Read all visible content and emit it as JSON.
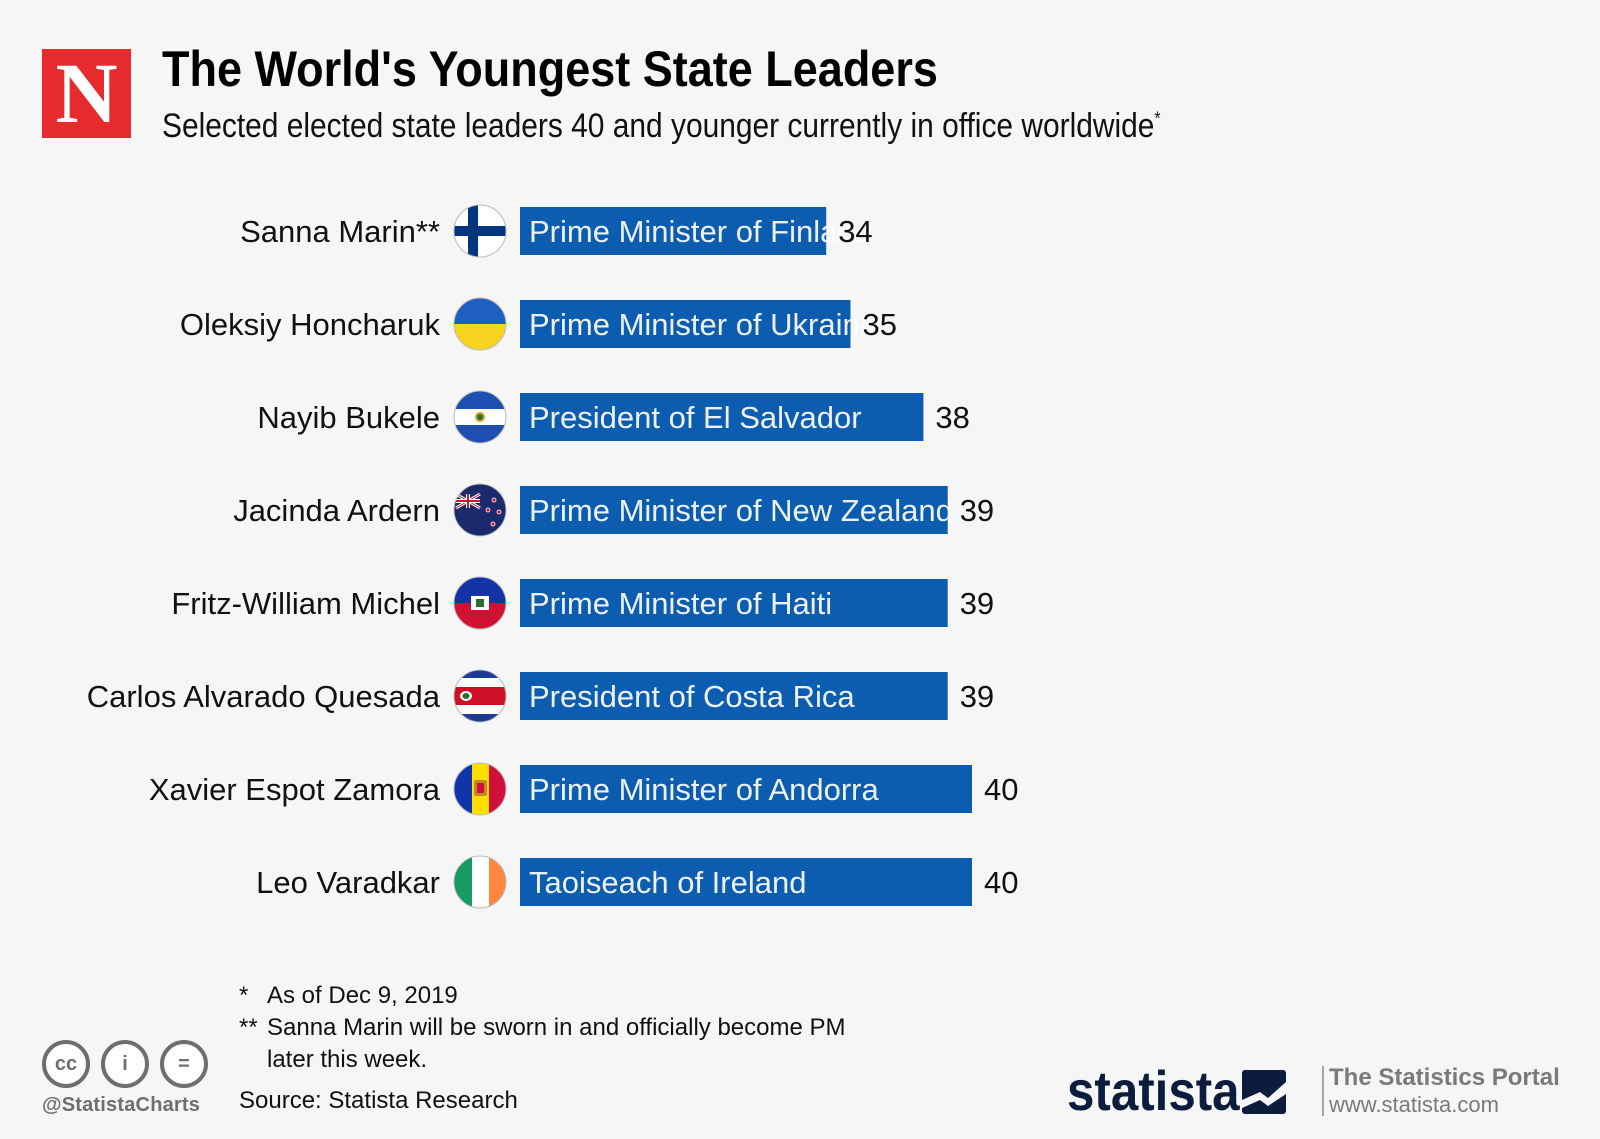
{
  "header": {
    "logo_letter": "N",
    "title": "The World's Youngest State Leaders",
    "subtitle": "Selected elected state leaders 40 and younger currently in office worldwide",
    "subtitle_mark": "*"
  },
  "colors": {
    "bar": "#0c5cb0",
    "logo": "#e62b2e"
  },
  "chart_data": {
    "type": "bar",
    "orientation": "horizontal",
    "title": "The World's Youngest State Leaders",
    "xlabel": "",
    "ylabel": "",
    "xlim": [
      0,
      40
    ],
    "grid": false,
    "categories": [
      "Sanna Marin**",
      "Oleksiy Honcharuk",
      "Nayib Bukele",
      "Jacinda Ardern",
      "Fritz-William Michel",
      "Carlos Alvarado Quesada",
      "Xavier Espot Zamora",
      "Leo Varadkar"
    ],
    "bar_labels": [
      "Prime Minister of Finland",
      "Prime Minister of Ukraine",
      "President of El Salvador",
      "Prime Minister of New Zealand",
      "Prime Minister of Haiti",
      "President of Costa Rica",
      "Prime Minister of Andorra",
      "Taoiseach of Ireland"
    ],
    "flags": [
      "finland-flag-icon",
      "ukraine-flag-icon",
      "el-salvador-flag-icon",
      "new-zealand-flag-icon",
      "haiti-flag-icon",
      "costa-rica-flag-icon",
      "andorra-flag-icon",
      "ireland-flag-icon"
    ],
    "values": [
      34,
      35,
      38,
      39,
      39,
      39,
      40,
      40
    ],
    "value_labels": [
      "34",
      "35",
      "38",
      "39",
      "39",
      "39",
      "40",
      "40"
    ]
  },
  "footnotes": [
    {
      "mark": "*",
      "text": "As of Dec 9, 2019"
    },
    {
      "mark": "**",
      "text": "Sanna Marin will be sworn in and officially become PM"
    },
    {
      "mark": "",
      "text": "later this week."
    }
  ],
  "source": "Source: Statista Research",
  "footer": {
    "cc_icons": [
      "creative-commons-icon",
      "attribution-icon",
      "no-derivatives-icon"
    ],
    "cc_glyphs": [
      "cc",
      "i",
      "="
    ],
    "handle": "@StatistaCharts",
    "brand": "statista",
    "portal_title": "The Statistics Portal",
    "portal_url": "www.statista.com"
  }
}
